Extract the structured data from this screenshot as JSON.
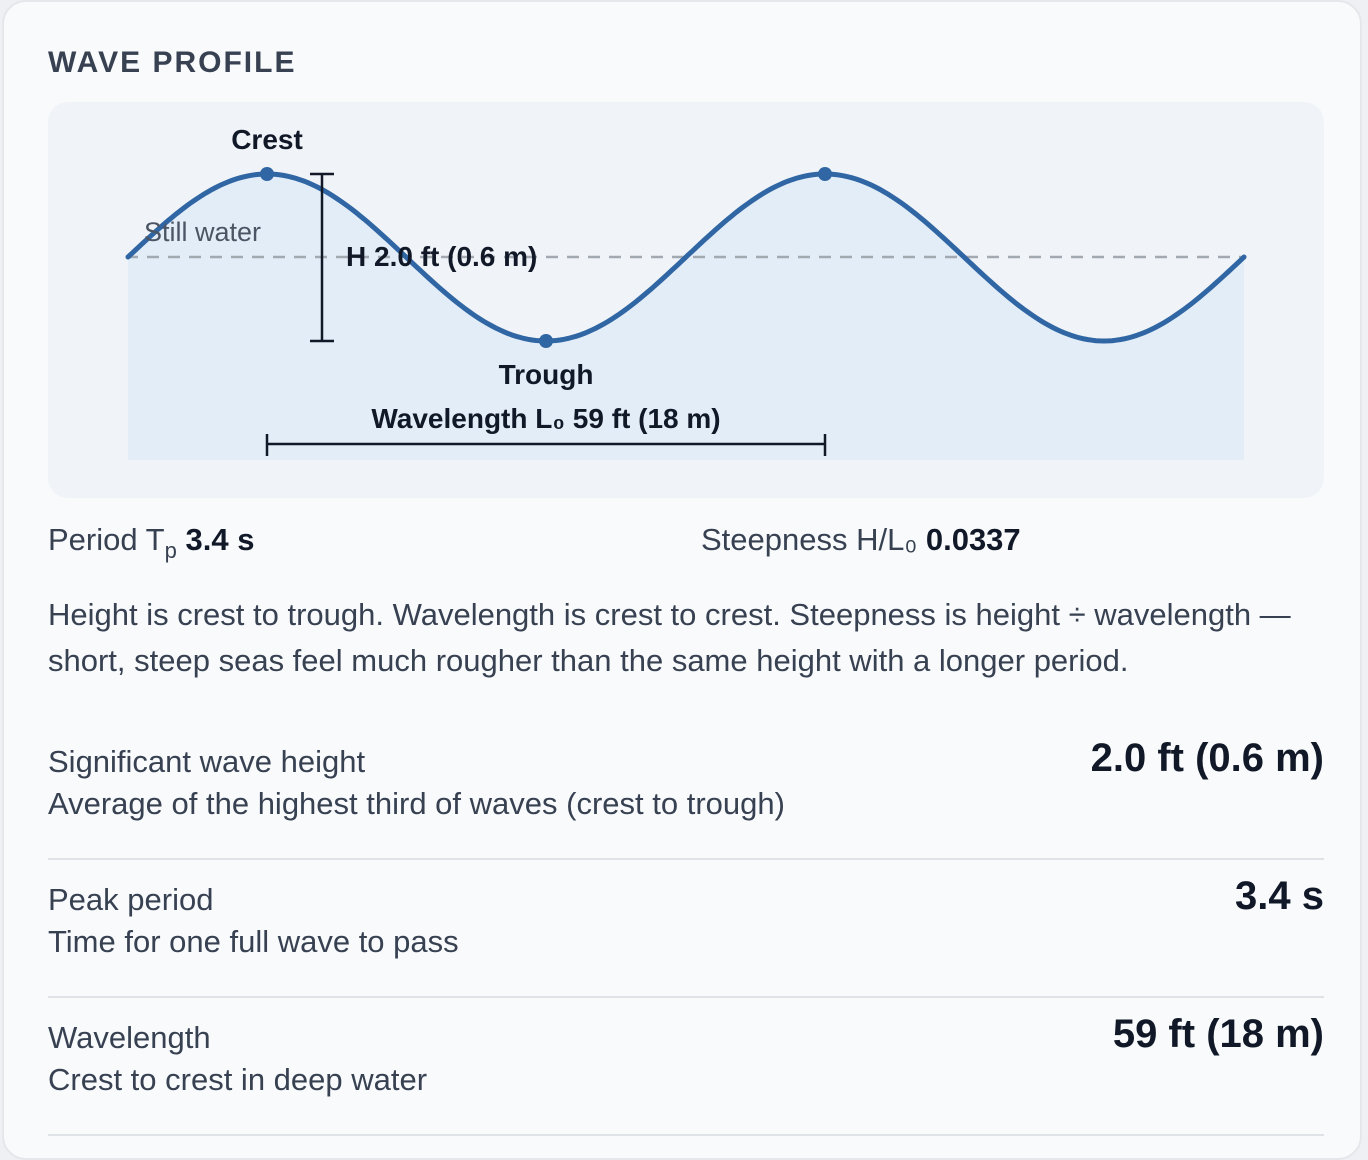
{
  "title": "WAVE PROFILE",
  "diagram": {
    "crest_label": "Crest",
    "trough_label": "Trough",
    "still_water_label": "Still water",
    "height_annotation": "H 2.0 ft (0.6 m)",
    "wavelength_annotation": "Wavelength L₀ 59 ft (18 m)",
    "colors": {
      "wave": "#2f66a3",
      "fill": "#e3edf8",
      "marker": "#111827"
    }
  },
  "stats": {
    "period_label_main": "Period T",
    "period_label_sub": "p",
    "period_value": "3.4 s",
    "steepness_label": "Steepness H/L₀",
    "steepness_value": "0.0337"
  },
  "note": "Height is crest to trough. Wavelength is crest to crest. Steepness is height ÷ wavelength — short, steep seas feel much rougher than the same height with a longer period.",
  "metrics": [
    {
      "label": "Significant wave height",
      "desc": "Average of the highest third of waves (crest to trough)",
      "value": "2.0 ft (0.6 m)"
    },
    {
      "label": "Peak period",
      "desc": "Time for one full wave to pass",
      "value": "3.4 s"
    },
    {
      "label": "Wavelength",
      "desc": "Crest to crest in deep water",
      "value": "59 ft (18 m)"
    }
  ]
}
